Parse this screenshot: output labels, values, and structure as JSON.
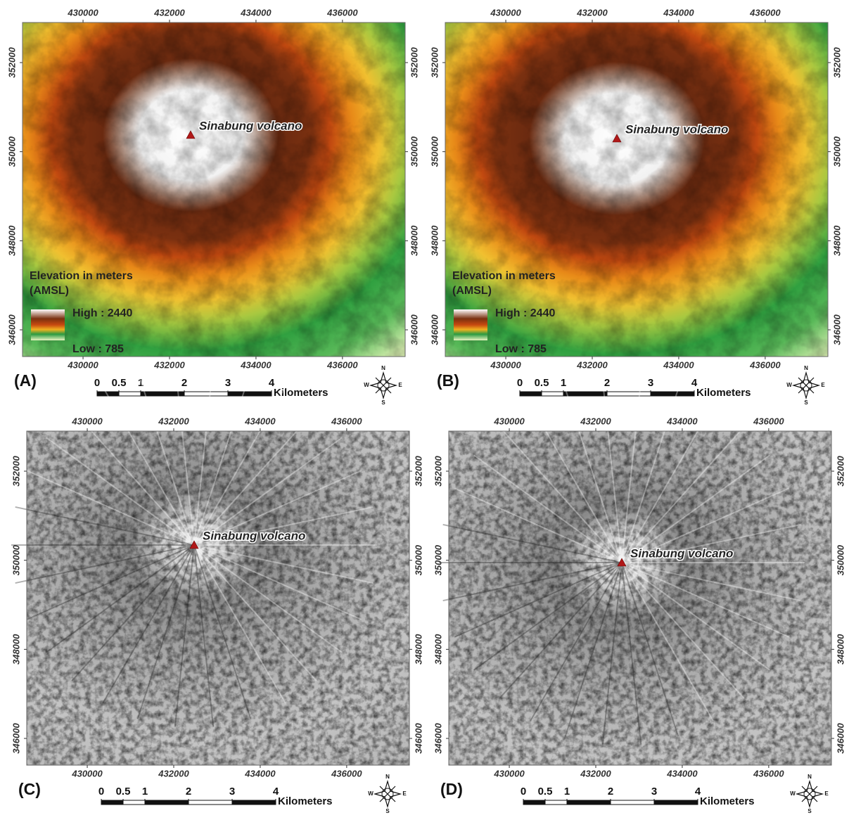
{
  "panels": [
    {
      "label": "(A)",
      "kind": "elevation",
      "xticks": [
        430000,
        432000,
        434000,
        436000
      ],
      "yticks": [
        346000,
        348000,
        350000,
        352000
      ],
      "xlim": [
        428600,
        437450
      ],
      "ylim": [
        345400,
        352900
      ],
      "volcano": "Sinabung volcano",
      "legend": {
        "title": "Elevation in meters",
        "subtitle": "(AMSL)",
        "high": "High : 2440",
        "low": "Low : 785"
      },
      "scale": {
        "ticks": [
          0,
          0.5,
          1,
          2,
          3,
          4
        ],
        "unit": "Kilometers"
      },
      "compass": {
        "n": "N",
        "e": "E",
        "s": "S",
        "w": "W"
      }
    },
    {
      "label": "(B)",
      "kind": "elevation",
      "xticks": [
        430000,
        432000,
        434000,
        436000
      ],
      "yticks": [
        346000,
        348000,
        350000,
        352000
      ],
      "xlim": [
        428600,
        437450
      ],
      "ylim": [
        345400,
        352900
      ],
      "volcano": "Sinabung volcano",
      "legend": {
        "title": "Elevation in meters",
        "subtitle": "(AMSL)",
        "high": "High : 2440",
        "low": "Low : 785"
      },
      "scale": {
        "ticks": [
          0,
          0.5,
          1,
          2,
          3,
          4
        ],
        "unit": "Kilometers"
      },
      "compass": {
        "n": "N",
        "e": "E",
        "s": "S",
        "w": "W"
      }
    },
    {
      "label": "(C)",
      "kind": "hillshade",
      "xticks": [
        430000,
        432000,
        434000,
        436000
      ],
      "yticks": [
        346000,
        348000,
        350000,
        352000
      ],
      "xlim": [
        428600,
        437450
      ],
      "ylim": [
        345400,
        352900
      ],
      "volcano": "Sinabung volcano",
      "scale": {
        "ticks": [
          0,
          0.5,
          1,
          2,
          3,
          4
        ],
        "unit": "Kilometers"
      },
      "compass": {
        "n": "N",
        "e": "E",
        "s": "S",
        "w": "W"
      }
    },
    {
      "label": "(D)",
      "kind": "hillshade",
      "xticks": [
        430000,
        432000,
        434000,
        436000
      ],
      "yticks": [
        346000,
        348000,
        350000,
        352000
      ],
      "xlim": [
        428600,
        437450
      ],
      "ylim": [
        345400,
        352900
      ],
      "volcano": "Sinabung volcano",
      "scale": {
        "ticks": [
          0,
          0.5,
          1,
          2,
          3,
          4
        ],
        "unit": "Kilometers"
      },
      "compass": {
        "n": "N",
        "e": "E",
        "s": "S",
        "w": "W"
      }
    }
  ]
}
